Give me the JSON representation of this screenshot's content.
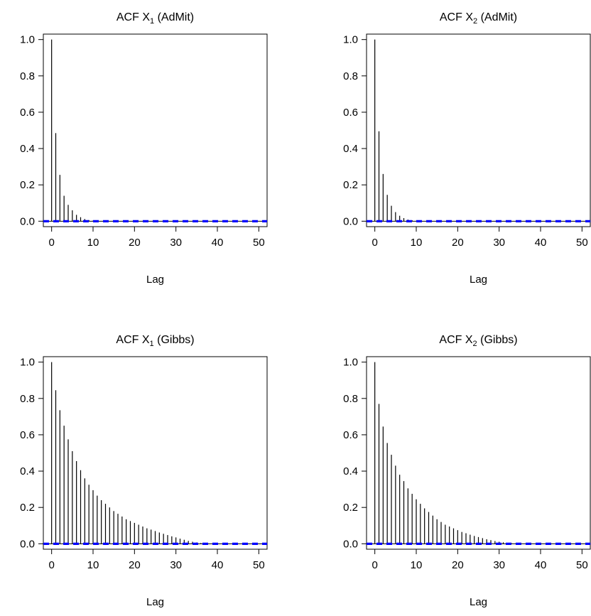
{
  "colors": {
    "bars": "#000000",
    "conf_band": "#0000ff",
    "zero_line": "#000000",
    "axes": "#000000"
  },
  "chart_data": [
    {
      "type": "bar",
      "subtype": "acf",
      "title": {
        "prefix": "ACF X",
        "sub": "1",
        "suffix": " (AdMit)"
      },
      "xlabel": "Lag",
      "ylabel": "",
      "xlim": [
        -2,
        52
      ],
      "ylim": [
        -0.03,
        1.03
      ],
      "xticks": [
        0,
        10,
        20,
        30,
        40,
        50
      ],
      "yticks": [
        0.0,
        0.2,
        0.4,
        0.6,
        0.8,
        1.0
      ],
      "ytick_labels": [
        "0.0",
        "0.2",
        "0.4",
        "0.6",
        "0.8",
        "1.0"
      ],
      "conf_band": [
        -0.002,
        0.002
      ],
      "x": [
        0,
        1,
        2,
        3,
        4,
        5,
        6,
        7,
        8,
        9,
        10,
        11,
        12,
        13,
        14,
        15,
        16,
        17,
        18,
        19,
        20,
        21,
        22,
        23,
        24,
        25,
        26,
        27,
        28,
        29,
        30,
        31,
        32,
        33,
        34,
        35,
        36,
        37,
        38,
        39,
        40,
        41,
        42,
        43,
        44,
        45,
        46,
        47,
        48,
        49,
        50
      ],
      "values": [
        1.0,
        0.485,
        0.255,
        0.14,
        0.09,
        0.06,
        0.035,
        0.022,
        0.012,
        0.006,
        0.003,
        0.002,
        0.001,
        0.001,
        0,
        0,
        0,
        0,
        0,
        0,
        0,
        0,
        0,
        0,
        0,
        0,
        0,
        0,
        0,
        0,
        0,
        0,
        0,
        0,
        0,
        0,
        0,
        0,
        0,
        0,
        0,
        0,
        0,
        0,
        0,
        0,
        0,
        0,
        0,
        0,
        0
      ],
      "grid": false,
      "legend": "none"
    },
    {
      "type": "bar",
      "subtype": "acf",
      "title": {
        "prefix": "ACF X",
        "sub": "2",
        "suffix": " (AdMit)"
      },
      "xlabel": "Lag",
      "ylabel": "",
      "xlim": [
        -2,
        52
      ],
      "ylim": [
        -0.03,
        1.03
      ],
      "xticks": [
        0,
        10,
        20,
        30,
        40,
        50
      ],
      "yticks": [
        0.0,
        0.2,
        0.4,
        0.6,
        0.8,
        1.0
      ],
      "ytick_labels": [
        "0.0",
        "0.2",
        "0.4",
        "0.6",
        "0.8",
        "1.0"
      ],
      "conf_band": [
        -0.002,
        0.002
      ],
      "x": [
        0,
        1,
        2,
        3,
        4,
        5,
        6,
        7,
        8,
        9,
        10,
        11,
        12,
        13,
        14,
        15,
        16,
        17,
        18,
        19,
        20,
        21,
        22,
        23,
        24,
        25,
        26,
        27,
        28,
        29,
        30,
        31,
        32,
        33,
        34,
        35,
        36,
        37,
        38,
        39,
        40,
        41,
        42,
        43,
        44,
        45,
        46,
        47,
        48,
        49,
        50
      ],
      "values": [
        1.0,
        0.495,
        0.26,
        0.145,
        0.085,
        0.05,
        0.03,
        0.017,
        0.009,
        0.005,
        0.002,
        0.001,
        0,
        0,
        0,
        0,
        0,
        0,
        0,
        0,
        0,
        0,
        0,
        0,
        0,
        0,
        0,
        0,
        0,
        0,
        0,
        0,
        0,
        0,
        0,
        0,
        0,
        0,
        0,
        0,
        0,
        0,
        0,
        0,
        0,
        0,
        0,
        0,
        0,
        0,
        0
      ],
      "grid": false,
      "legend": "none"
    },
    {
      "type": "bar",
      "subtype": "acf",
      "title": {
        "prefix": "ACF X",
        "sub": "1",
        "suffix": " (Gibbs)"
      },
      "xlabel": "Lag",
      "ylabel": "",
      "xlim": [
        -2,
        52
      ],
      "ylim": [
        -0.03,
        1.03
      ],
      "xticks": [
        0,
        10,
        20,
        30,
        40,
        50
      ],
      "yticks": [
        0.0,
        0.2,
        0.4,
        0.6,
        0.8,
        1.0
      ],
      "ytick_labels": [
        "0.0",
        "0.2",
        "0.4",
        "0.6",
        "0.8",
        "1.0"
      ],
      "conf_band": [
        -0.002,
        0.002
      ],
      "x": [
        0,
        1,
        2,
        3,
        4,
        5,
        6,
        7,
        8,
        9,
        10,
        11,
        12,
        13,
        14,
        15,
        16,
        17,
        18,
        19,
        20,
        21,
        22,
        23,
        24,
        25,
        26,
        27,
        28,
        29,
        30,
        31,
        32,
        33,
        34,
        35,
        36,
        37,
        38,
        39,
        40,
        41,
        42,
        43,
        44,
        45,
        46,
        47,
        48,
        49,
        50
      ],
      "values": [
        1.0,
        0.845,
        0.735,
        0.65,
        0.575,
        0.51,
        0.455,
        0.405,
        0.36,
        0.325,
        0.295,
        0.265,
        0.24,
        0.22,
        0.2,
        0.18,
        0.165,
        0.15,
        0.135,
        0.125,
        0.115,
        0.105,
        0.095,
        0.085,
        0.078,
        0.07,
        0.062,
        0.055,
        0.048,
        0.041,
        0.035,
        0.028,
        0.022,
        0.016,
        0.011,
        0.007,
        0.004,
        0.002,
        0.001,
        0,
        0,
        0,
        0,
        0,
        0,
        0,
        0,
        0,
        0,
        0,
        0
      ],
      "grid": false,
      "legend": "none"
    },
    {
      "type": "bar",
      "subtype": "acf",
      "title": {
        "prefix": "ACF X",
        "sub": "2",
        "suffix": " (Gibbs)"
      },
      "xlabel": "Lag",
      "ylabel": "",
      "xlim": [
        -2,
        52
      ],
      "ylim": [
        -0.03,
        1.03
      ],
      "xticks": [
        0,
        10,
        20,
        30,
        40,
        50
      ],
      "yticks": [
        0.0,
        0.2,
        0.4,
        0.6,
        0.8,
        1.0
      ],
      "ytick_labels": [
        "0.0",
        "0.2",
        "0.4",
        "0.6",
        "0.8",
        "1.0"
      ],
      "conf_band": [
        -0.002,
        0.002
      ],
      "x": [
        0,
        1,
        2,
        3,
        4,
        5,
        6,
        7,
        8,
        9,
        10,
        11,
        12,
        13,
        14,
        15,
        16,
        17,
        18,
        19,
        20,
        21,
        22,
        23,
        24,
        25,
        26,
        27,
        28,
        29,
        30,
        31,
        32,
        33,
        34,
        35,
        36,
        37,
        38,
        39,
        40,
        41,
        42,
        43,
        44,
        45,
        46,
        47,
        48,
        49,
        50
      ],
      "values": [
        1.0,
        0.77,
        0.645,
        0.555,
        0.49,
        0.43,
        0.38,
        0.345,
        0.305,
        0.275,
        0.245,
        0.22,
        0.195,
        0.175,
        0.155,
        0.135,
        0.12,
        0.105,
        0.095,
        0.085,
        0.075,
        0.065,
        0.058,
        0.05,
        0.043,
        0.037,
        0.031,
        0.025,
        0.02,
        0.015,
        0.011,
        0.008,
        0.005,
        0.003,
        0.002,
        0.001,
        0,
        0,
        0,
        0,
        0,
        0,
        0,
        0,
        0,
        0,
        0,
        0,
        0,
        0,
        0
      ],
      "grid": false,
      "legend": "none"
    }
  ]
}
